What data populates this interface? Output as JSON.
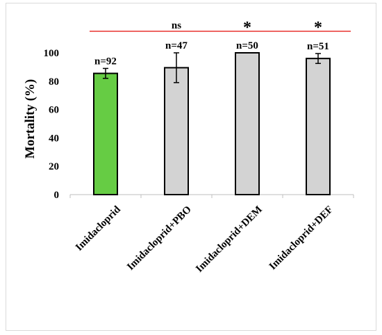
{
  "chart_data": {
    "type": "bar",
    "categories": [
      "Imidacloprid",
      "Imidacloprid+PBO",
      "Imidacloprid+DEM",
      "Imidacloprid+DEF"
    ],
    "values": [
      85.5,
      89.5,
      100,
      96
    ],
    "error": [
      3.5,
      10.5,
      0,
      3.5
    ],
    "bar_labels": [
      "n=92",
      "n=47",
      "n=50",
      "n=51"
    ],
    "bar_colors": [
      "#66cc44",
      "#d3d3d3",
      "#d3d3d3",
      "#d3d3d3"
    ],
    "ylabel": "Mortality (%)",
    "xlabel": "",
    "ylim": [
      0,
      100
    ],
    "yticks": [
      0,
      20,
      40,
      60,
      80,
      100
    ],
    "grid": false,
    "significance": {
      "line_color": "#e8322e",
      "labels": [
        "ns",
        "*",
        "*"
      ],
      "applies_to": [
        "Imidacloprid+PBO",
        "Imidacloprid+DEM",
        "Imidacloprid+DEF"
      ]
    }
  }
}
